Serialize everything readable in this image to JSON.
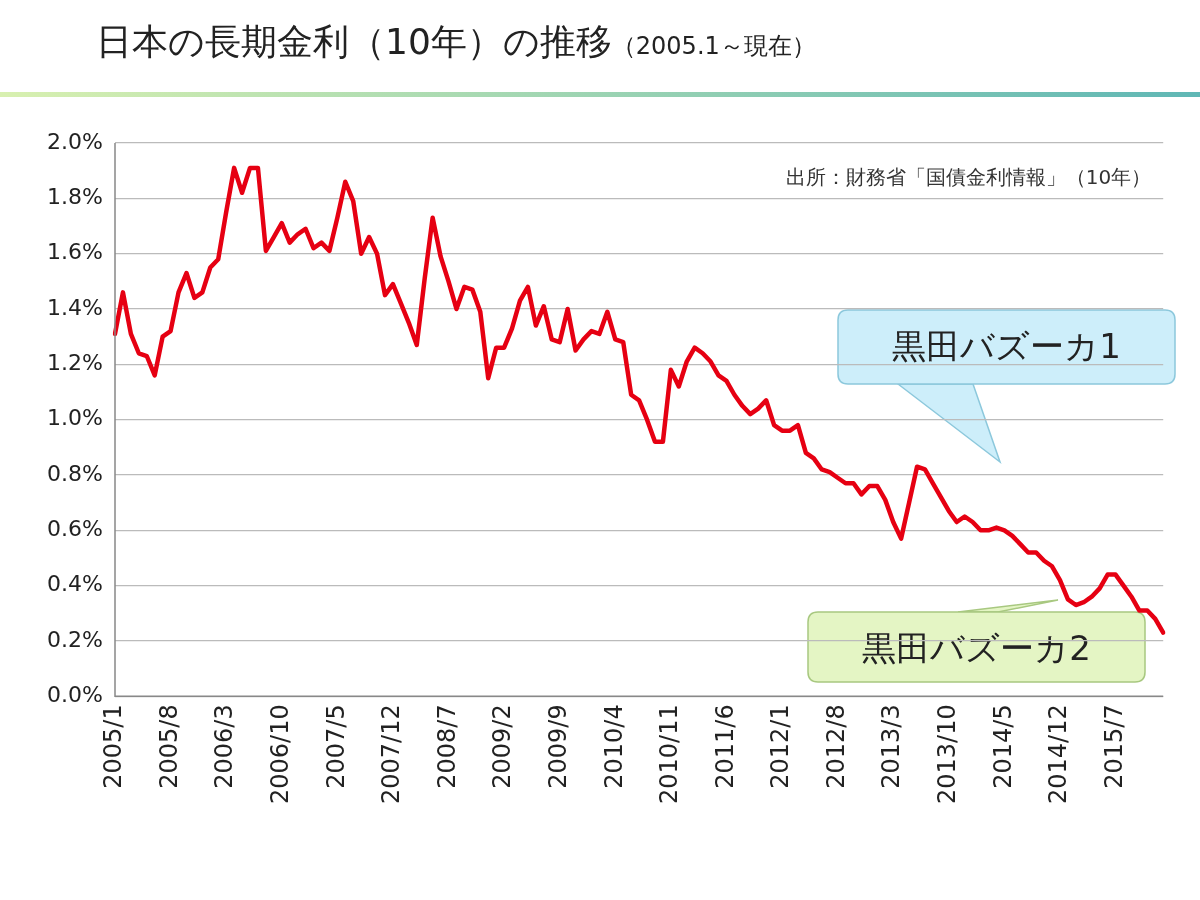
{
  "chart_data": {
    "type": "line",
    "title": "日本の長期金利（10年）の推移",
    "subtitle": "（2005.1～現在）",
    "categories": [
      "2005/1",
      null,
      null,
      null,
      null,
      null,
      null,
      "2005/8",
      null,
      null,
      null,
      null,
      null,
      null,
      "2006/3",
      null,
      null,
      null,
      null,
      null,
      null,
      "2006/10",
      null,
      null,
      null,
      null,
      null,
      null,
      "2007/5",
      null,
      null,
      null,
      null,
      null,
      null,
      "2007/12",
      null,
      null,
      null,
      null,
      null,
      null,
      "2008/7",
      null,
      null,
      null,
      null,
      null,
      null,
      "2009/2",
      null,
      null,
      null,
      null,
      null,
      null,
      "2009/9",
      null,
      null,
      null,
      null,
      null,
      null,
      "2010/4",
      null,
      null,
      null,
      null,
      null,
      null,
      "2010/11",
      null,
      null,
      null,
      null,
      null,
      null,
      "2011/6",
      null,
      null,
      null,
      null,
      null,
      null,
      "2012/1",
      null,
      null,
      null,
      null,
      null,
      null,
      "2012/8",
      null,
      null,
      null,
      null,
      null,
      null,
      "2013/3",
      null,
      null,
      null,
      null,
      null,
      null,
      "2013/10",
      null,
      null,
      null,
      null,
      null,
      null,
      "2014/5",
      null,
      null,
      null,
      null,
      null,
      null,
      "2014/12",
      null,
      null,
      null,
      null,
      null,
      null,
      "2015/7",
      null,
      null,
      null,
      null,
      null,
      null
    ],
    "series": [
      {
        "color": "#e60012",
        "values": [
          1.31,
          1.46,
          1.31,
          1.24,
          1.23,
          1.16,
          1.3,
          1.32,
          1.46,
          1.53,
          1.44,
          1.46,
          1.55,
          1.58,
          1.75,
          1.91,
          1.82,
          1.91,
          1.91,
          1.61,
          1.66,
          1.71,
          1.64,
          1.67,
          1.69,
          1.62,
          1.64,
          1.61,
          1.73,
          1.86,
          1.79,
          1.6,
          1.66,
          1.6,
          1.45,
          1.49,
          1.42,
          1.35,
          1.27,
          1.51,
          1.73,
          1.59,
          1.5,
          1.4,
          1.48,
          1.47,
          1.39,
          1.15,
          1.26,
          1.26,
          1.33,
          1.43,
          1.48,
          1.34,
          1.41,
          1.29,
          1.28,
          1.4,
          1.25,
          1.29,
          1.32,
          1.31,
          1.39,
          1.29,
          1.28,
          1.09,
          1.07,
          1.0,
          0.92,
          0.92,
          1.18,
          1.12,
          1.21,
          1.26,
          1.24,
          1.21,
          1.16,
          1.14,
          1.09,
          1.05,
          1.02,
          1.04,
          1.07,
          0.98,
          0.96,
          0.96,
          0.98,
          0.88,
          0.86,
          0.82,
          0.81,
          0.79,
          0.77,
          0.77,
          0.73,
          0.76,
          0.76,
          0.71,
          0.63,
          0.57,
          0.7,
          0.83,
          0.82,
          0.77,
          0.72,
          0.67,
          0.63,
          0.65,
          0.63,
          0.6,
          0.6,
          0.61,
          0.6,
          0.58,
          0.55,
          0.52,
          0.52,
          0.49,
          0.47,
          0.42,
          0.35,
          0.33,
          0.34,
          0.36,
          0.39,
          0.44,
          0.44,
          0.4,
          0.36,
          0.31,
          0.31,
          0.28,
          0.23
        ]
      }
    ],
    "ylim": [
      0,
      2
    ],
    "yticks": [
      {
        "value": 0,
        "label": "0.0%"
      },
      {
        "value": 0.2,
        "label": "0.2%"
      },
      {
        "value": 0.4,
        "label": "0.4%"
      },
      {
        "value": 0.6,
        "label": "0.6%"
      },
      {
        "value": 0.8,
        "label": "0.8%"
      },
      {
        "value": 1.0,
        "label": "1.0%"
      },
      {
        "value": 1.2,
        "label": "1.2%"
      },
      {
        "value": 1.4,
        "label": "1.4%"
      },
      {
        "value": 1.6,
        "label": "1.6%"
      },
      {
        "value": 1.8,
        "label": "1.8%"
      },
      {
        "value": 2.0,
        "label": "2.0%"
      }
    ],
    "grid": "y",
    "legend": false,
    "marker": "none",
    "line_style": "solid",
    "annotations": [
      "出所：財務省「国債金利情報」（10年）",
      "黒田バズーカ1",
      "黒田バズーカ2"
    ]
  }
}
